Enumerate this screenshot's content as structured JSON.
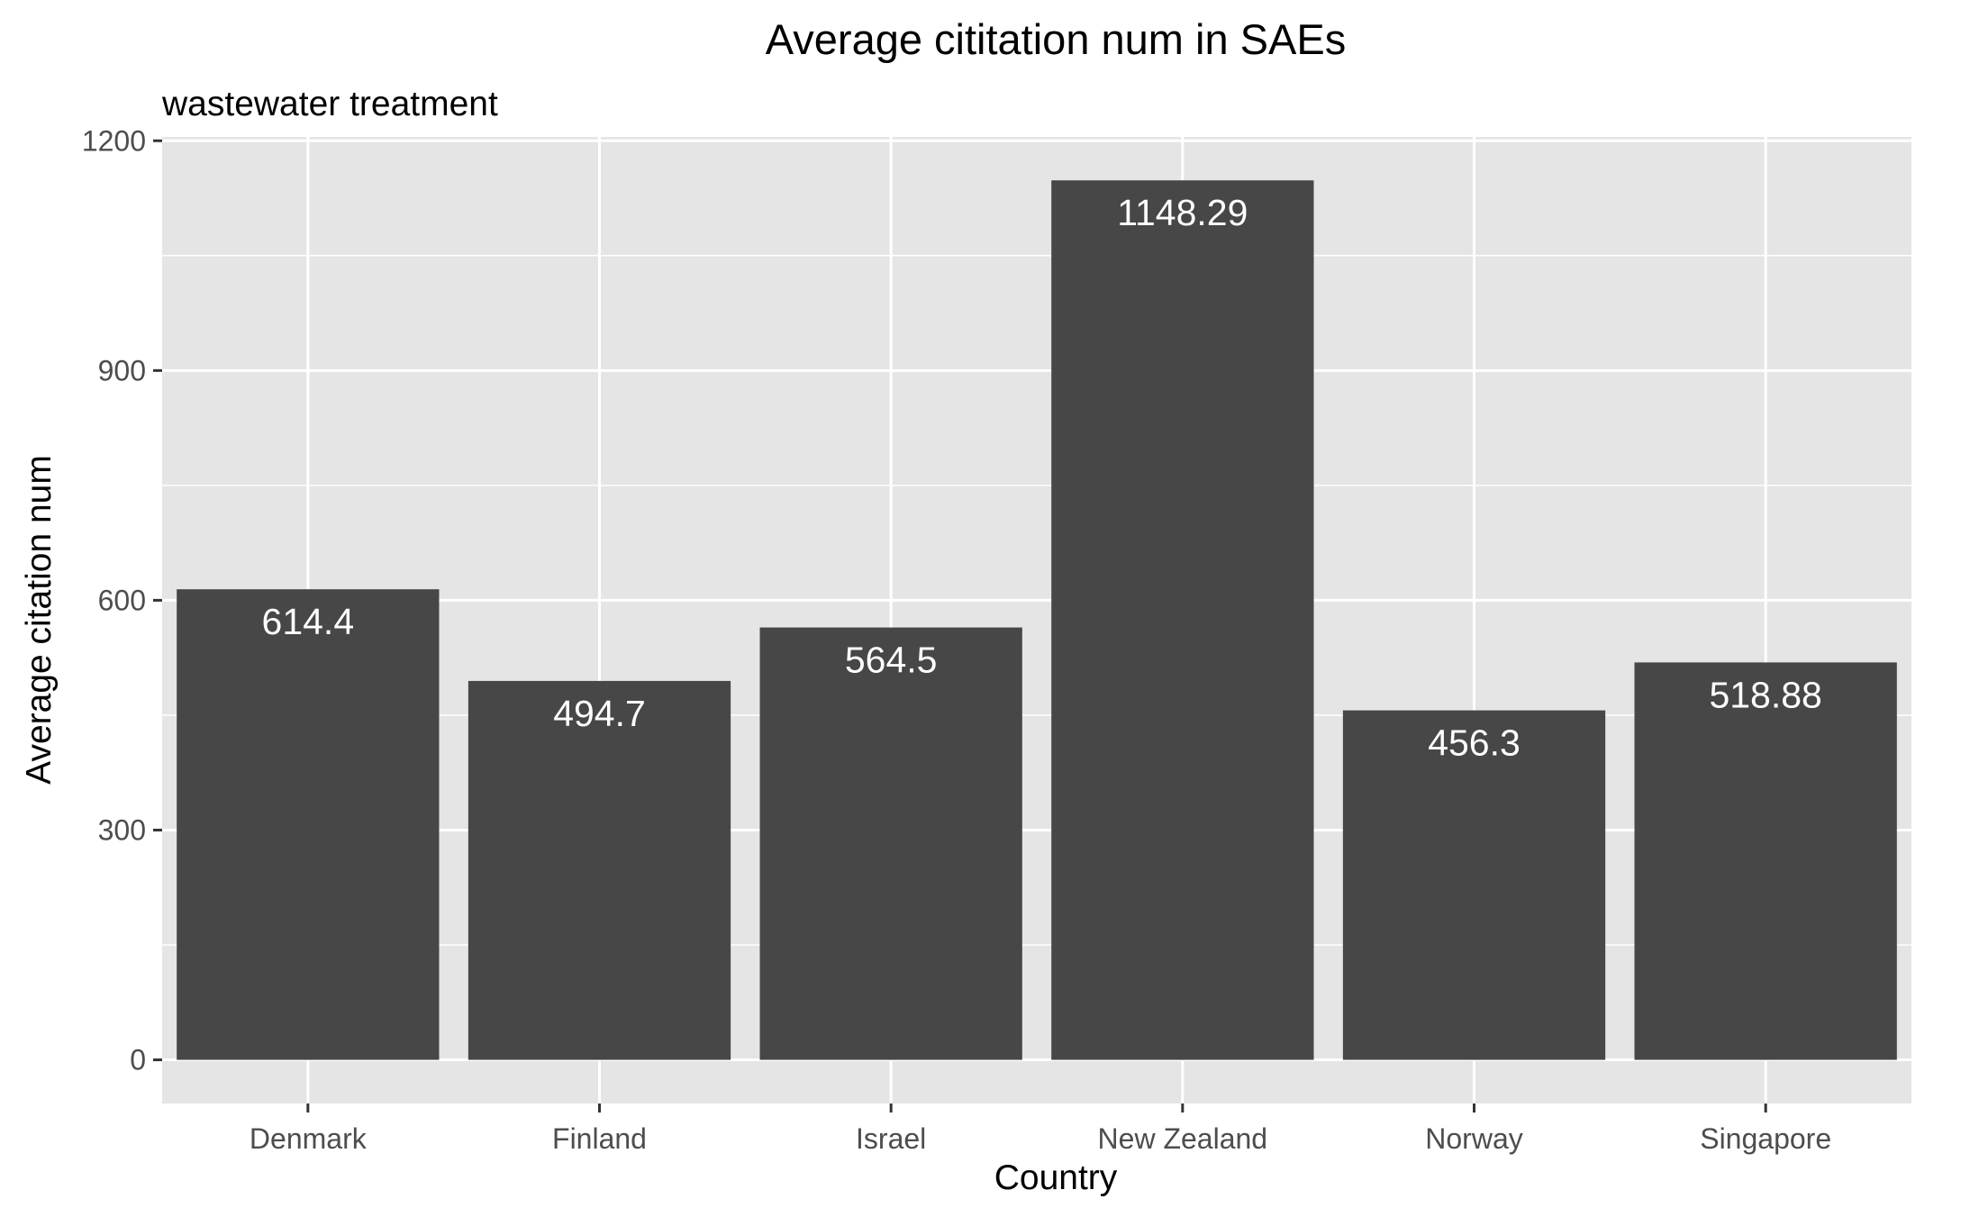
{
  "chart_data": {
    "type": "bar",
    "title": "Average cititation num in SAEs",
    "subtitle": "wastewater treatment",
    "xlabel": "Country",
    "ylabel": "Average citation num",
    "categories": [
      "Denmark",
      "Finland",
      "Israel",
      "New Zealand",
      "Norway",
      "Singapore"
    ],
    "values": [
      614.4,
      494.7,
      564.5,
      1148.29,
      456.3,
      518.88
    ],
    "data_labels": [
      "614.4",
      "494.7",
      "564.5",
      "1148.29",
      "456.3",
      "518.88"
    ],
    "ylim": [
      -57,
      1205
    ],
    "yticks": [
      0,
      300,
      600,
      900,
      1200
    ],
    "ytick_labels": [
      "0",
      "300",
      "600",
      "900",
      "1200"
    ],
    "grid": true,
    "legend": "none",
    "colors": {
      "bar": "#474747",
      "panel_background": "#e5e5e5",
      "grid": "#ffffff",
      "data_label": "#ffffff",
      "tick_label": "#4d4d4d"
    }
  }
}
